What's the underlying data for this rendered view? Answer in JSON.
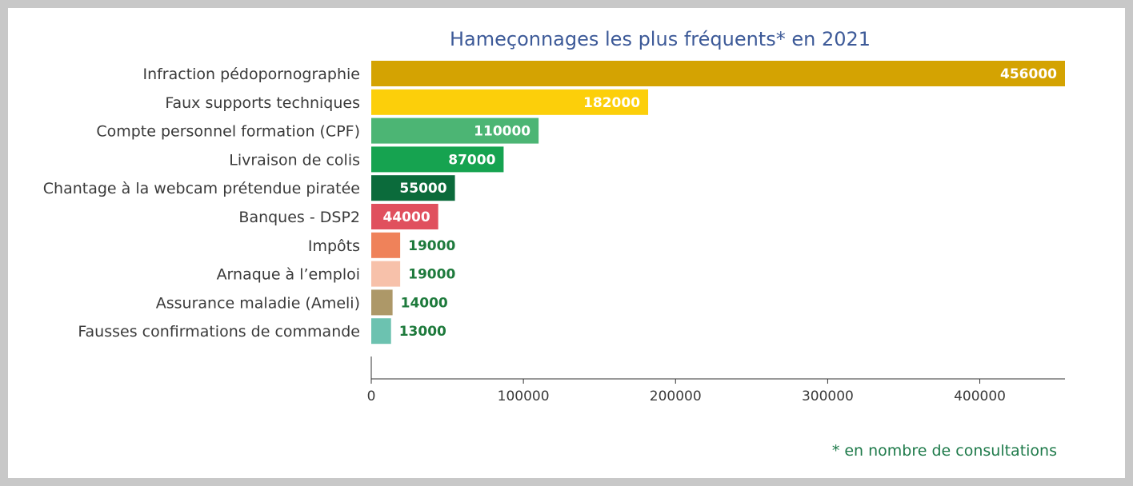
{
  "chart_data": {
    "type": "bar",
    "orientation": "horizontal",
    "title": "Hameçonnages les plus fréquents* en 2021",
    "footnote": "* en nombre de consultations",
    "categories": [
      "Infraction pédopornographie",
      "Faux supports techniques",
      "Compte personnel formation (CPF)",
      "Livraison de colis",
      "Chantage à la webcam prétendue piratée",
      "Banques - DSP2",
      "Impôts",
      "Arnaque à l’emploi",
      "Assurance maladie (Ameli)",
      "Fausses confirmations de commande"
    ],
    "values": [
      456000,
      182000,
      110000,
      87000,
      55000,
      44000,
      19000,
      19000,
      14000,
      13000
    ],
    "value_labels": [
      "456000",
      "182000",
      "110000",
      "87000",
      "55000",
      "44000",
      "19000",
      "19000",
      "14000",
      "13000"
    ],
    "colors": [
      "#d4a302",
      "#fccf0a",
      "#4cb574",
      "#16a350",
      "#0b6b3b",
      "#e0505e",
      "#ef825a",
      "#f7c1aa",
      "#ad9868",
      "#6cc2b0"
    ],
    "label_colors": [
      "#ffffff",
      "#ffffff",
      "#ffffff",
      "#ffffff",
      "#ffffff",
      "#ffffff",
      "#1e7a3c",
      "#1e7a3c",
      "#1e7a3c",
      "#1e7a3c"
    ],
    "label_inside": [
      true,
      true,
      true,
      true,
      true,
      true,
      false,
      false,
      false,
      false
    ],
    "xticks": [
      0,
      100000,
      200000,
      300000,
      400000
    ],
    "xtick_labels": [
      "0",
      "100000",
      "200000",
      "300000",
      "400000"
    ],
    "xlim": [
      0,
      456000
    ],
    "grid": false,
    "legend": "none"
  }
}
